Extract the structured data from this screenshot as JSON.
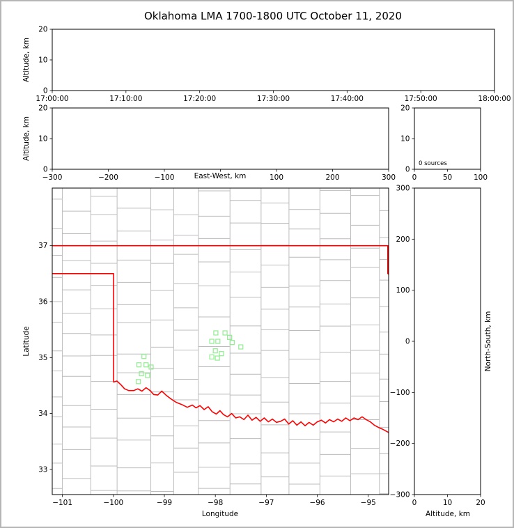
{
  "title": "Oklahoma LMA 1700-1800 UTC October 11, 2020",
  "colors": {
    "state_border": "#ff0000",
    "county_lines": "#bcbcbc",
    "stations": "#90ee90",
    "axis": "#000000",
    "figure_border": "#b5b5b5",
    "background": "#ffffff"
  },
  "chart_data": [
    {
      "id": "time_height_panel",
      "type": "scatter",
      "xlabel": "",
      "ylabel": "Altitude, km",
      "x_tick_labels": [
        "17:00:00",
        "17:10:00",
        "17:20:00",
        "17:30:00",
        "17:40:00",
        "17:50:00",
        "18:00:00"
      ],
      "ylim": [
        0,
        20
      ],
      "yticks": [
        0,
        10,
        20
      ],
      "points": []
    },
    {
      "id": "ew_height_panel",
      "type": "scatter",
      "xlabel": "East-West, km",
      "ylabel": "Altitude, km",
      "xlim": [
        -300,
        300
      ],
      "xticks": [
        -300,
        -200,
        -100,
        0,
        100,
        200,
        300
      ],
      "xlabel_replaces_zero_tick": true,
      "ylim": [
        0,
        20
      ],
      "yticks": [
        0,
        10,
        20
      ],
      "points": []
    },
    {
      "id": "source_histogram_panel",
      "type": "line",
      "annotation": "0 sources",
      "n_sources": 0,
      "xlim": [
        0,
        100
      ],
      "xticks": [
        0,
        50,
        100
      ],
      "ylim": [
        0,
        20
      ],
      "yticks": [
        0,
        10,
        20
      ],
      "points": []
    },
    {
      "id": "map_panel",
      "type": "scatter",
      "xlabel": "Longitude",
      "ylabel": "Latitude",
      "xlim": [
        -101.2,
        -94.6
      ],
      "xticks": [
        -101,
        -100,
        -99,
        -98,
        -97,
        -96,
        -95
      ],
      "ylim": [
        32.55,
        38.03
      ],
      "yticks": [
        33,
        34,
        35,
        36,
        37
      ],
      "state_border": [
        [
          [
            -101.3,
            37.0
          ],
          [
            -94.617,
            37.0
          ],
          [
            -94.617,
            36.5
          ],
          [
            -94.6,
            36.49
          ]
        ],
        [
          [
            -101.3,
            36.5
          ],
          [
            -99.996,
            36.5
          ],
          [
            -99.996,
            34.561
          ],
          [
            -99.93,
            34.58
          ],
          [
            -99.85,
            34.51
          ],
          [
            -99.78,
            34.44
          ],
          [
            -99.7,
            34.41
          ],
          [
            -99.6,
            34.41
          ],
          [
            -99.52,
            34.44
          ],
          [
            -99.44,
            34.4
          ],
          [
            -99.36,
            34.46
          ],
          [
            -99.28,
            34.41
          ],
          [
            -99.21,
            34.34
          ],
          [
            -99.13,
            34.33
          ],
          [
            -99.05,
            34.4
          ],
          [
            -98.97,
            34.33
          ],
          [
            -98.87,
            34.26
          ],
          [
            -98.77,
            34.2
          ],
          [
            -98.66,
            34.16
          ],
          [
            -98.55,
            34.11
          ],
          [
            -98.45,
            34.15
          ],
          [
            -98.38,
            34.1
          ],
          [
            -98.3,
            34.14
          ],
          [
            -98.22,
            34.07
          ],
          [
            -98.14,
            34.12
          ],
          [
            -98.06,
            34.03
          ],
          [
            -97.98,
            33.99
          ],
          [
            -97.91,
            34.05
          ],
          [
            -97.84,
            33.98
          ],
          [
            -97.76,
            33.94
          ],
          [
            -97.68,
            34.0
          ],
          [
            -97.6,
            33.92
          ],
          [
            -97.52,
            33.94
          ],
          [
            -97.44,
            33.89
          ],
          [
            -97.36,
            33.97
          ],
          [
            -97.28,
            33.88
          ],
          [
            -97.2,
            33.93
          ],
          [
            -97.12,
            33.86
          ],
          [
            -97.04,
            33.92
          ],
          [
            -96.96,
            33.85
          ],
          [
            -96.88,
            33.9
          ],
          [
            -96.8,
            33.84
          ],
          [
            -96.72,
            33.86
          ],
          [
            -96.64,
            33.9
          ],
          [
            -96.56,
            33.81
          ],
          [
            -96.48,
            33.87
          ],
          [
            -96.4,
            33.79
          ],
          [
            -96.32,
            33.85
          ],
          [
            -96.24,
            33.78
          ],
          [
            -96.16,
            33.84
          ],
          [
            -96.08,
            33.79
          ],
          [
            -96.0,
            33.85
          ],
          [
            -95.92,
            33.88
          ],
          [
            -95.84,
            33.83
          ],
          [
            -95.76,
            33.89
          ],
          [
            -95.68,
            33.85
          ],
          [
            -95.6,
            33.9
          ],
          [
            -95.52,
            33.86
          ],
          [
            -95.44,
            33.92
          ],
          [
            -95.36,
            33.87
          ],
          [
            -95.28,
            33.92
          ],
          [
            -95.2,
            33.89
          ],
          [
            -95.12,
            33.94
          ],
          [
            -95.04,
            33.89
          ],
          [
            -94.96,
            33.85
          ],
          [
            -94.88,
            33.79
          ],
          [
            -94.8,
            33.75
          ],
          [
            -94.72,
            33.72
          ],
          [
            -94.6,
            33.66
          ]
        ]
      ],
      "stations": [
        [
          -97.99,
          35.44
        ],
        [
          -97.81,
          35.44
        ],
        [
          -98.07,
          35.29
        ],
        [
          -97.95,
          35.29
        ],
        [
          -97.72,
          35.36
        ],
        [
          -97.67,
          35.27
        ],
        [
          -97.5,
          35.19
        ],
        [
          -98.0,
          35.12
        ],
        [
          -97.88,
          35.07
        ],
        [
          -98.07,
          35.01
        ],
        [
          -97.96,
          34.99
        ],
        [
          -99.4,
          35.02
        ],
        [
          -99.5,
          34.87
        ],
        [
          -99.36,
          34.87
        ],
        [
          -99.26,
          34.83
        ],
        [
          -99.45,
          34.71
        ],
        [
          -99.33,
          34.68
        ],
        [
          -99.51,
          34.57
        ]
      ],
      "points": []
    },
    {
      "id": "ns_height_panel",
      "type": "scatter",
      "xlabel": "Altitude, km",
      "ylabel": "North-South, km",
      "xlim": [
        0,
        20
      ],
      "xticks": [
        0,
        10,
        20
      ],
      "ylim": [
        -300,
        300
      ],
      "yticks": [
        -300,
        -200,
        -100,
        0,
        100,
        200,
        300
      ],
      "points": []
    }
  ]
}
